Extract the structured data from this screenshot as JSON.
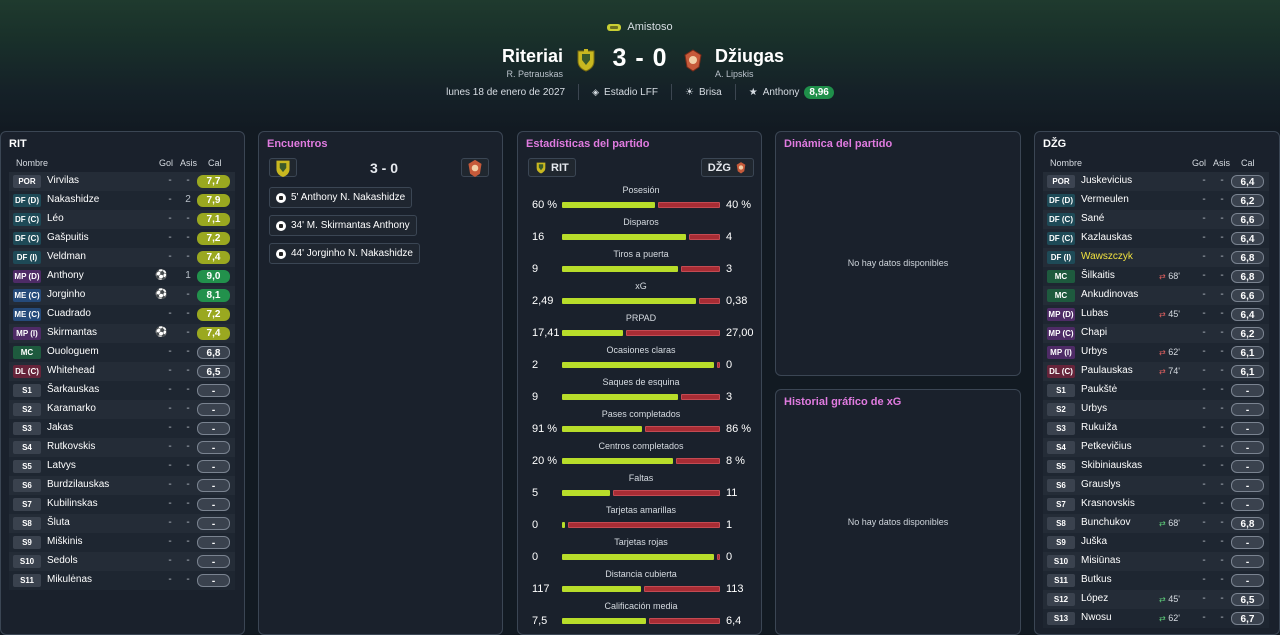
{
  "header": {
    "competition": "Amistoso",
    "home": {
      "name": "Riteriai",
      "coach": "R. Petrauskas"
    },
    "away": {
      "name": "Džiugas",
      "coach": "A. Lipskis"
    },
    "score": "3 - 0",
    "date": "lunes 18 de enero de 2027",
    "stadium": "Estadio LFF",
    "weather": "Brisa",
    "motm": {
      "name": "Anthony",
      "rating": "8,96"
    }
  },
  "left": {
    "code": "RIT",
    "cols": {
      "name": "Nombre",
      "gol": "Gol",
      "asis": "Asis",
      "cal": "Cal"
    },
    "players": [
      {
        "pos": "POR",
        "name": "Virvilas",
        "gol": "-",
        "asis": "-",
        "cal": "7,7",
        "t": "yg",
        "c": "por"
      },
      {
        "pos": "DF (D)",
        "name": "Nakashidze",
        "gol": "-",
        "asis": "2",
        "cal": "7,9",
        "t": "yg",
        "c": "df"
      },
      {
        "pos": "DF (C)",
        "name": "Léo",
        "gol": "-",
        "asis": "-",
        "cal": "7,1",
        "t": "yg",
        "c": "df"
      },
      {
        "pos": "DF (C)",
        "name": "Gašpuitis",
        "gol": "-",
        "asis": "-",
        "cal": "7,2",
        "t": "yg",
        "c": "df"
      },
      {
        "pos": "DF (I)",
        "name": "Veldman",
        "gol": "-",
        "asis": "-",
        "cal": "7,4",
        "t": "yg",
        "c": "df"
      },
      {
        "pos": "MP (D)",
        "name": "Anthony",
        "gol": "",
        "asis": "1",
        "cal": "9,0",
        "t": "gr",
        "c": "mp",
        "ev": true
      },
      {
        "pos": "ME (C)",
        "name": "Jorginho",
        "gol": "",
        "asis": "-",
        "cal": "8,1",
        "t": "gr",
        "c": "me",
        "ev": true
      },
      {
        "pos": "ME (C)",
        "name": "Cuadrado",
        "gol": "-",
        "asis": "-",
        "cal": "7,2",
        "t": "yg",
        "c": "me"
      },
      {
        "pos": "MP (I)",
        "name": "Skirmantas",
        "gol": "",
        "asis": "-",
        "cal": "7,4",
        "t": "yg",
        "c": "mp",
        "ev": true
      },
      {
        "pos": "MC",
        "name": "Ouologuem",
        "gol": "-",
        "asis": "-",
        "cal": "6,8",
        "t": "dim",
        "c": "mc"
      },
      {
        "pos": "DL (C)",
        "name": "Whitehead",
        "gol": "-",
        "asis": "-",
        "cal": "6,5",
        "t": "dim",
        "c": "dl"
      },
      {
        "pos": "S1",
        "name": "Šarkauskas",
        "gol": "-",
        "asis": "-",
        "cal": "-",
        "t": "dim",
        "c": "s"
      },
      {
        "pos": "S2",
        "name": "Karamarko",
        "gol": "-",
        "asis": "-",
        "cal": "-",
        "t": "dim",
        "c": "s"
      },
      {
        "pos": "S3",
        "name": "Jakas",
        "gol": "-",
        "asis": "-",
        "cal": "-",
        "t": "dim",
        "c": "s"
      },
      {
        "pos": "S4",
        "name": "Rutkovskis",
        "gol": "-",
        "asis": "-",
        "cal": "-",
        "t": "dim",
        "c": "s"
      },
      {
        "pos": "S5",
        "name": "Latvys",
        "gol": "-",
        "asis": "-",
        "cal": "-",
        "t": "dim",
        "c": "s"
      },
      {
        "pos": "S6",
        "name": "Burdzilauskas",
        "gol": "-",
        "asis": "-",
        "cal": "-",
        "t": "dim",
        "c": "s"
      },
      {
        "pos": "S7",
        "name": "Kubilinskas",
        "gol": "-",
        "asis": "-",
        "cal": "-",
        "t": "dim",
        "c": "s"
      },
      {
        "pos": "S8",
        "name": "Šluta",
        "gol": "-",
        "asis": "-",
        "cal": "-",
        "t": "dim",
        "c": "s"
      },
      {
        "pos": "S9",
        "name": "Miškinis",
        "gol": "-",
        "asis": "-",
        "cal": "-",
        "t": "dim",
        "c": "s"
      },
      {
        "pos": "S10",
        "name": "Sedols",
        "gol": "-",
        "asis": "-",
        "cal": "-",
        "t": "dim",
        "c": "s"
      },
      {
        "pos": "S11",
        "name": "Mikulėnas",
        "gol": "-",
        "asis": "-",
        "cal": "-",
        "t": "dim",
        "c": "s"
      }
    ]
  },
  "encounters": {
    "title": "Encuentros",
    "score": "3 - 0",
    "events": [
      {
        "text": "5' Anthony N. Nakashidze"
      },
      {
        "text": "34' M. Skirmantas Anthony"
      },
      {
        "text": "44' Jorginho N. Nakashidze"
      }
    ]
  },
  "stats": {
    "title": "Estadísticas del partido",
    "home_code": "RIT",
    "away_code": "DŽG",
    "items": [
      {
        "label": "Posesión",
        "l": "60 %",
        "r": "40 %",
        "lv": 60,
        "rv": 40
      },
      {
        "label": "Disparos",
        "l": "16",
        "r": "4",
        "lv": 16,
        "rv": 4
      },
      {
        "label": "Tiros a puerta",
        "l": "9",
        "r": "3",
        "lv": 9,
        "rv": 3
      },
      {
        "label": "xG",
        "l": "2,49",
        "r": "0,38",
        "lv": 2.49,
        "rv": 0.38
      },
      {
        "label": "PRPAD",
        "l": "17,41",
        "r": "27,00",
        "lv": 17.41,
        "rv": 27.0
      },
      {
        "label": "Ocasiones claras",
        "l": "2",
        "r": "0",
        "lv": 2,
        "rv": 0
      },
      {
        "label": "Saques de esquina",
        "l": "9",
        "r": "3",
        "lv": 9,
        "rv": 3
      },
      {
        "label": "Pases completados",
        "l": "91 %",
        "r": "86 %",
        "lv": 91,
        "rv": 86
      },
      {
        "label": "Centros completados",
        "l": "20 %",
        "r": "8 %",
        "lv": 20,
        "rv": 8
      },
      {
        "label": "Faltas",
        "l": "5",
        "r": "11",
        "lv": 5,
        "rv": 11
      },
      {
        "label": "Tarjetas amarillas",
        "l": "0",
        "r": "1",
        "lv": 0,
        "rv": 1
      },
      {
        "label": "Tarjetas rojas",
        "l": "0",
        "r": "0",
        "lv": 0,
        "rv": 0
      },
      {
        "label": "Distancia cubierta",
        "l": "117",
        "r": "113",
        "lv": 117,
        "rv": 113
      },
      {
        "label": "Calificación media",
        "l": "7,5",
        "r": "6,4",
        "lv": 7.5,
        "rv": 6.4
      }
    ]
  },
  "dynamics": {
    "title": "Dinámica del partido",
    "empty": "No hay datos disponibles"
  },
  "xg": {
    "title": "Historial gráfico de xG",
    "empty": "No hay datos disponibles"
  },
  "right": {
    "code": "DŽG",
    "cols": {
      "name": "Nombre",
      "gol": "Gol",
      "asis": "Asis",
      "cal": "Cal"
    },
    "players": [
      {
        "pos": "POR",
        "name": "Juskevicius",
        "gol": "-",
        "asis": "-",
        "cal": "6,4",
        "t": "dim",
        "c": "por"
      },
      {
        "pos": "DF (D)",
        "name": "Vermeulen",
        "gol": "-",
        "asis": "-",
        "cal": "6,2",
        "t": "dim",
        "c": "df"
      },
      {
        "pos": "DF (C)",
        "name": "Sané",
        "gol": "-",
        "asis": "-",
        "cal": "6,6",
        "t": "dim",
        "c": "df"
      },
      {
        "pos": "DF (C)",
        "name": "Kazlauskas",
        "gol": "-",
        "asis": "-",
        "cal": "6,4",
        "t": "dim",
        "c": "df"
      },
      {
        "pos": "DF (I)",
        "name": "Wawszczyk",
        "gol": "-",
        "asis": "-",
        "cal": "6,8",
        "t": "dim",
        "c": "df",
        "y": true
      },
      {
        "pos": "MC",
        "name": "Šilkaitis",
        "gol": "-",
        "asis": "-",
        "cal": "6,8",
        "t": "dim",
        "c": "mc",
        "sub": "68'",
        "sd": "r"
      },
      {
        "pos": "MC",
        "name": "Ankudinovas",
        "gol": "-",
        "asis": "-",
        "cal": "6,6",
        "t": "dim",
        "c": "mc"
      },
      {
        "pos": "MP (D)",
        "name": "Lubas",
        "gol": "-",
        "asis": "-",
        "cal": "6,4",
        "t": "dim",
        "c": "mp",
        "sub": "45'",
        "sd": "r"
      },
      {
        "pos": "MP (C)",
        "name": "Chapi",
        "gol": "-",
        "asis": "-",
        "cal": "6,2",
        "t": "dim",
        "c": "mp"
      },
      {
        "pos": "MP (I)",
        "name": "Urbys",
        "gol": "-",
        "asis": "-",
        "cal": "6,1",
        "t": "dim",
        "c": "mp",
        "sub": "62'",
        "sd": "r"
      },
      {
        "pos": "DL (C)",
        "name": "Paulauskas",
        "gol": "-",
        "asis": "-",
        "cal": "6,1",
        "t": "dim",
        "c": "dl",
        "sub": "74'",
        "sd": "r"
      },
      {
        "pos": "S1",
        "name": "Paukštė",
        "gol": "-",
        "asis": "-",
        "cal": "-",
        "t": "dim",
        "c": "s"
      },
      {
        "pos": "S2",
        "name": "Urbys",
        "gol": "-",
        "asis": "-",
        "cal": "-",
        "t": "dim",
        "c": "s"
      },
      {
        "pos": "S3",
        "name": "Rukuiža",
        "gol": "-",
        "asis": "-",
        "cal": "-",
        "t": "dim",
        "c": "s"
      },
      {
        "pos": "S4",
        "name": "Petkevičius",
        "gol": "-",
        "asis": "-",
        "cal": "-",
        "t": "dim",
        "c": "s"
      },
      {
        "pos": "S5",
        "name": "Skibiniauskas",
        "gol": "-",
        "asis": "-",
        "cal": "-",
        "t": "dim",
        "c": "s"
      },
      {
        "pos": "S6",
        "name": "Grauslys",
        "gol": "-",
        "asis": "-",
        "cal": "-",
        "t": "dim",
        "c": "s"
      },
      {
        "pos": "S7",
        "name": "Krasnovskis",
        "gol": "-",
        "asis": "-",
        "cal": "-",
        "t": "dim",
        "c": "s"
      },
      {
        "pos": "S8",
        "name": "Bunchukov",
        "gol": "-",
        "asis": "-",
        "cal": "6,8",
        "t": "dim",
        "c": "s",
        "sub": "68'",
        "sd": "g"
      },
      {
        "pos": "S9",
        "name": "Juška",
        "gol": "-",
        "asis": "-",
        "cal": "-",
        "t": "dim",
        "c": "s"
      },
      {
        "pos": "S10",
        "name": "Misiūnas",
        "gol": "-",
        "asis": "-",
        "cal": "-",
        "t": "dim",
        "c": "s"
      },
      {
        "pos": "S11",
        "name": "Butkus",
        "gol": "-",
        "asis": "-",
        "cal": "-",
        "t": "dim",
        "c": "s"
      },
      {
        "pos": "S12",
        "name": "López",
        "gol": "-",
        "asis": "-",
        "cal": "6,5",
        "t": "dim",
        "c": "s",
        "sub": "45'",
        "sd": "g"
      },
      {
        "pos": "S13",
        "name": "Nwosu",
        "gol": "-",
        "asis": "-",
        "cal": "6,7",
        "t": "dim",
        "c": "s",
        "sub": "62'",
        "sd": "g"
      }
    ]
  }
}
